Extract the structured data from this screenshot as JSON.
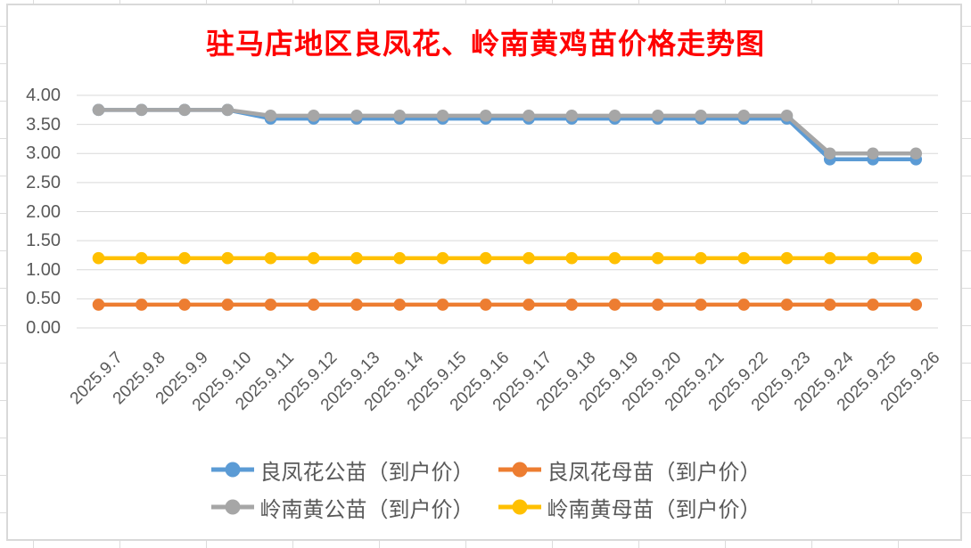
{
  "chart_data": {
    "type": "line",
    "title": "驻马店地区良凤花、岭南黄鸡苗价格走势图",
    "title_color": "#FF0000",
    "categories": [
      "2025.9.7",
      "2025.9.8",
      "2025.9.9",
      "2025.9.10",
      "2025.9.11",
      "2025.9.12",
      "2025.9.13",
      "2025.9.14",
      "2025.9.15",
      "2025.9.16",
      "2025.9.17",
      "2025.9.18",
      "2025.9.19",
      "2025.9.20",
      "2025.9.21",
      "2025.9.22",
      "2025.9.23",
      "2025.9.24",
      "2025.9.25",
      "2025.9.26"
    ],
    "series": [
      {
        "name": "良凤花公苗（到户价）",
        "color": "#5B9BD5",
        "values": [
          3.75,
          3.75,
          3.75,
          3.75,
          3.6,
          3.6,
          3.6,
          3.6,
          3.6,
          3.6,
          3.6,
          3.6,
          3.6,
          3.6,
          3.6,
          3.6,
          3.6,
          2.9,
          2.9,
          2.9
        ]
      },
      {
        "name": "良凤花母苗（到户价）",
        "color": "#ED7D31",
        "values": [
          0.4,
          0.4,
          0.4,
          0.4,
          0.4,
          0.4,
          0.4,
          0.4,
          0.4,
          0.4,
          0.4,
          0.4,
          0.4,
          0.4,
          0.4,
          0.4,
          0.4,
          0.4,
          0.4,
          0.4
        ]
      },
      {
        "name": "岭南黄公苗（到户价）",
        "color": "#A6A6A6",
        "values": [
          3.75,
          3.75,
          3.75,
          3.75,
          3.65,
          3.65,
          3.65,
          3.65,
          3.65,
          3.65,
          3.65,
          3.65,
          3.65,
          3.65,
          3.65,
          3.65,
          3.65,
          3.0,
          3.0,
          3.0
        ]
      },
      {
        "name": "岭南黄母苗（到户价）",
        "color": "#FFC000",
        "values": [
          1.2,
          1.2,
          1.2,
          1.2,
          1.2,
          1.2,
          1.2,
          1.2,
          1.2,
          1.2,
          1.2,
          1.2,
          1.2,
          1.2,
          1.2,
          1.2,
          1.2,
          1.2,
          1.2,
          1.2
        ]
      }
    ],
    "ylim": [
      0,
      4
    ],
    "ytick_labels": [
      "0.00",
      "0.50",
      "1.00",
      "1.50",
      "2.00",
      "2.50",
      "3.00",
      "3.50",
      "4.00"
    ],
    "grid": true,
    "gridline_color": "#D9D9D9",
    "axis_label_color": "#595959",
    "legend_position": "bottom",
    "legend_rows": [
      [
        0,
        1
      ],
      [
        2,
        3
      ]
    ],
    "marker": "circle"
  }
}
